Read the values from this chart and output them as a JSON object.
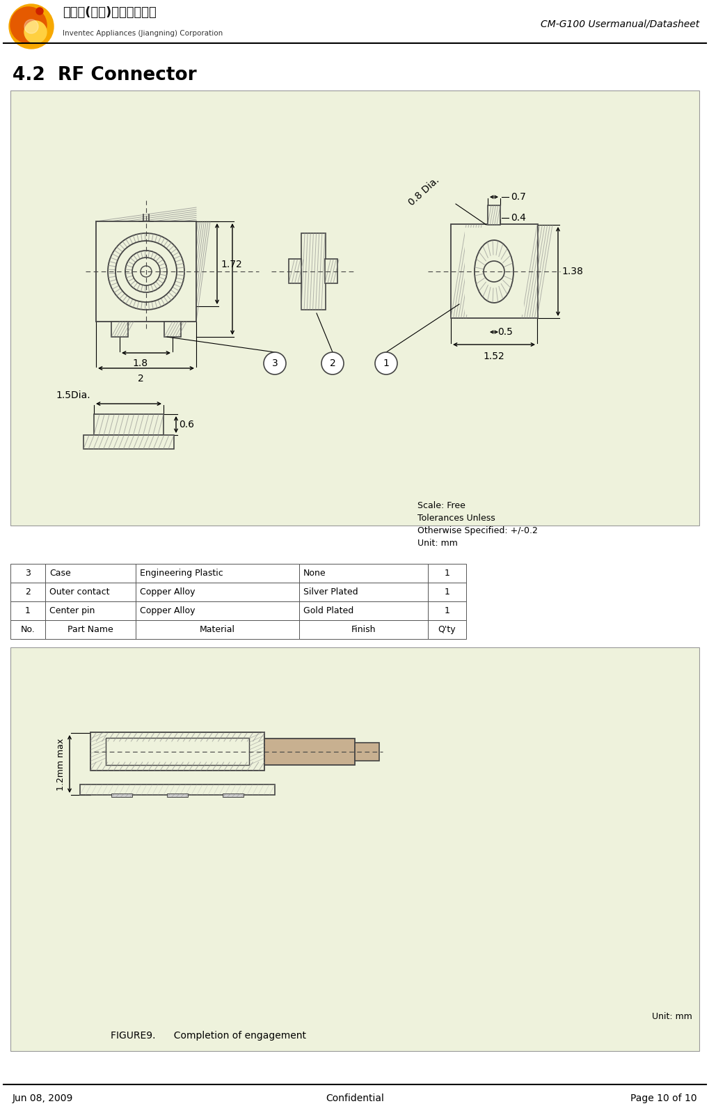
{
  "page_title_right": "CM-G100 Usermanual/Datasheet",
  "section_title": "4.2  RF Connector",
  "footer_left": "Jun 08, 2009",
  "footer_center": "Confidential",
  "footer_right": "Page 10 of 10",
  "bg_color_main": "#eef2dc",
  "bg_color_page": "#ffffff",
  "table_data": [
    [
      "3",
      "Case",
      "Engineering Plastic",
      "None",
      "1"
    ],
    [
      "2",
      "Outer contact",
      "Copper Alloy",
      "Silver Plated",
      "1"
    ],
    [
      "1",
      "Center pin",
      "Copper Alloy",
      "Gold Plated",
      "1"
    ],
    [
      "No.",
      "Part Name",
      "Material",
      "Finish",
      "Q'ty"
    ]
  ],
  "scale_text": "Scale: Free\nTolerances Unless\nOtherwise Specified: +/-0.2\nUnit: mm",
  "figure_caption": "FIGURE9.      Completion of engagement",
  "unit_label": "Unit: mm",
  "hatch_color": "#888888",
  "line_color": "#444444"
}
